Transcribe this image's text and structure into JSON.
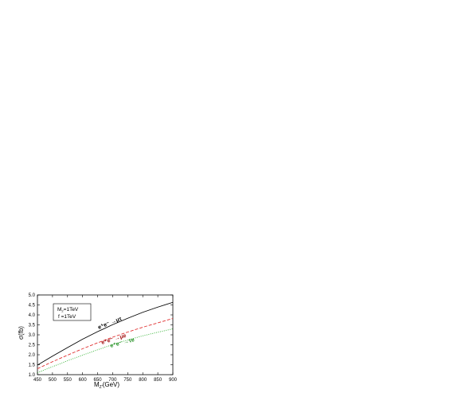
{
  "chart_data": {
    "type": "line",
    "xlabel": "M",
    "xlabel_sub": "Z'",
    "xlabel_unit": "(GeV)",
    "ylabel": "σ(fb)",
    "xlim": [
      450,
      900
    ],
    "ylim": [
      1.0,
      5.0
    ],
    "x_ticks": [
      450,
      500,
      550,
      600,
      650,
      700,
      750,
      800,
      850,
      900
    ],
    "y_ticks": [
      "1.0",
      "1.5",
      "2.0",
      "2.5",
      "3.0",
      "3.5",
      "4.0",
      "4.5",
      "5.0"
    ],
    "params_box": {
      "line1_main": "M",
      "line1_sub": "2",
      "line1_rest": "=1TeV",
      "line2": "f =1TeV"
    },
    "x": [
      450,
      500,
      550,
      600,
      650,
      700,
      750,
      800,
      850,
      900
    ],
    "series": [
      {
        "annotation": "e⁺e⁻ →μτ",
        "color": "#000000",
        "style": "solid",
        "values": [
          1.48,
          1.93,
          2.36,
          2.78,
          3.16,
          3.51,
          3.83,
          4.13,
          4.39,
          4.63
        ]
      },
      {
        "annotation": "e⁺e⁻ →μe",
        "color": "#e03030",
        "style": "dashed",
        "values": [
          1.3,
          1.65,
          1.98,
          2.3,
          2.6,
          2.88,
          3.14,
          3.38,
          3.6,
          3.82
        ]
      },
      {
        "annotation": "e⁺e⁻ →τe",
        "color": "#2db02d",
        "style": "dotted",
        "values": [
          1.1,
          1.4,
          1.7,
          1.98,
          2.25,
          2.51,
          2.74,
          2.95,
          3.13,
          3.3
        ]
      }
    ]
  }
}
